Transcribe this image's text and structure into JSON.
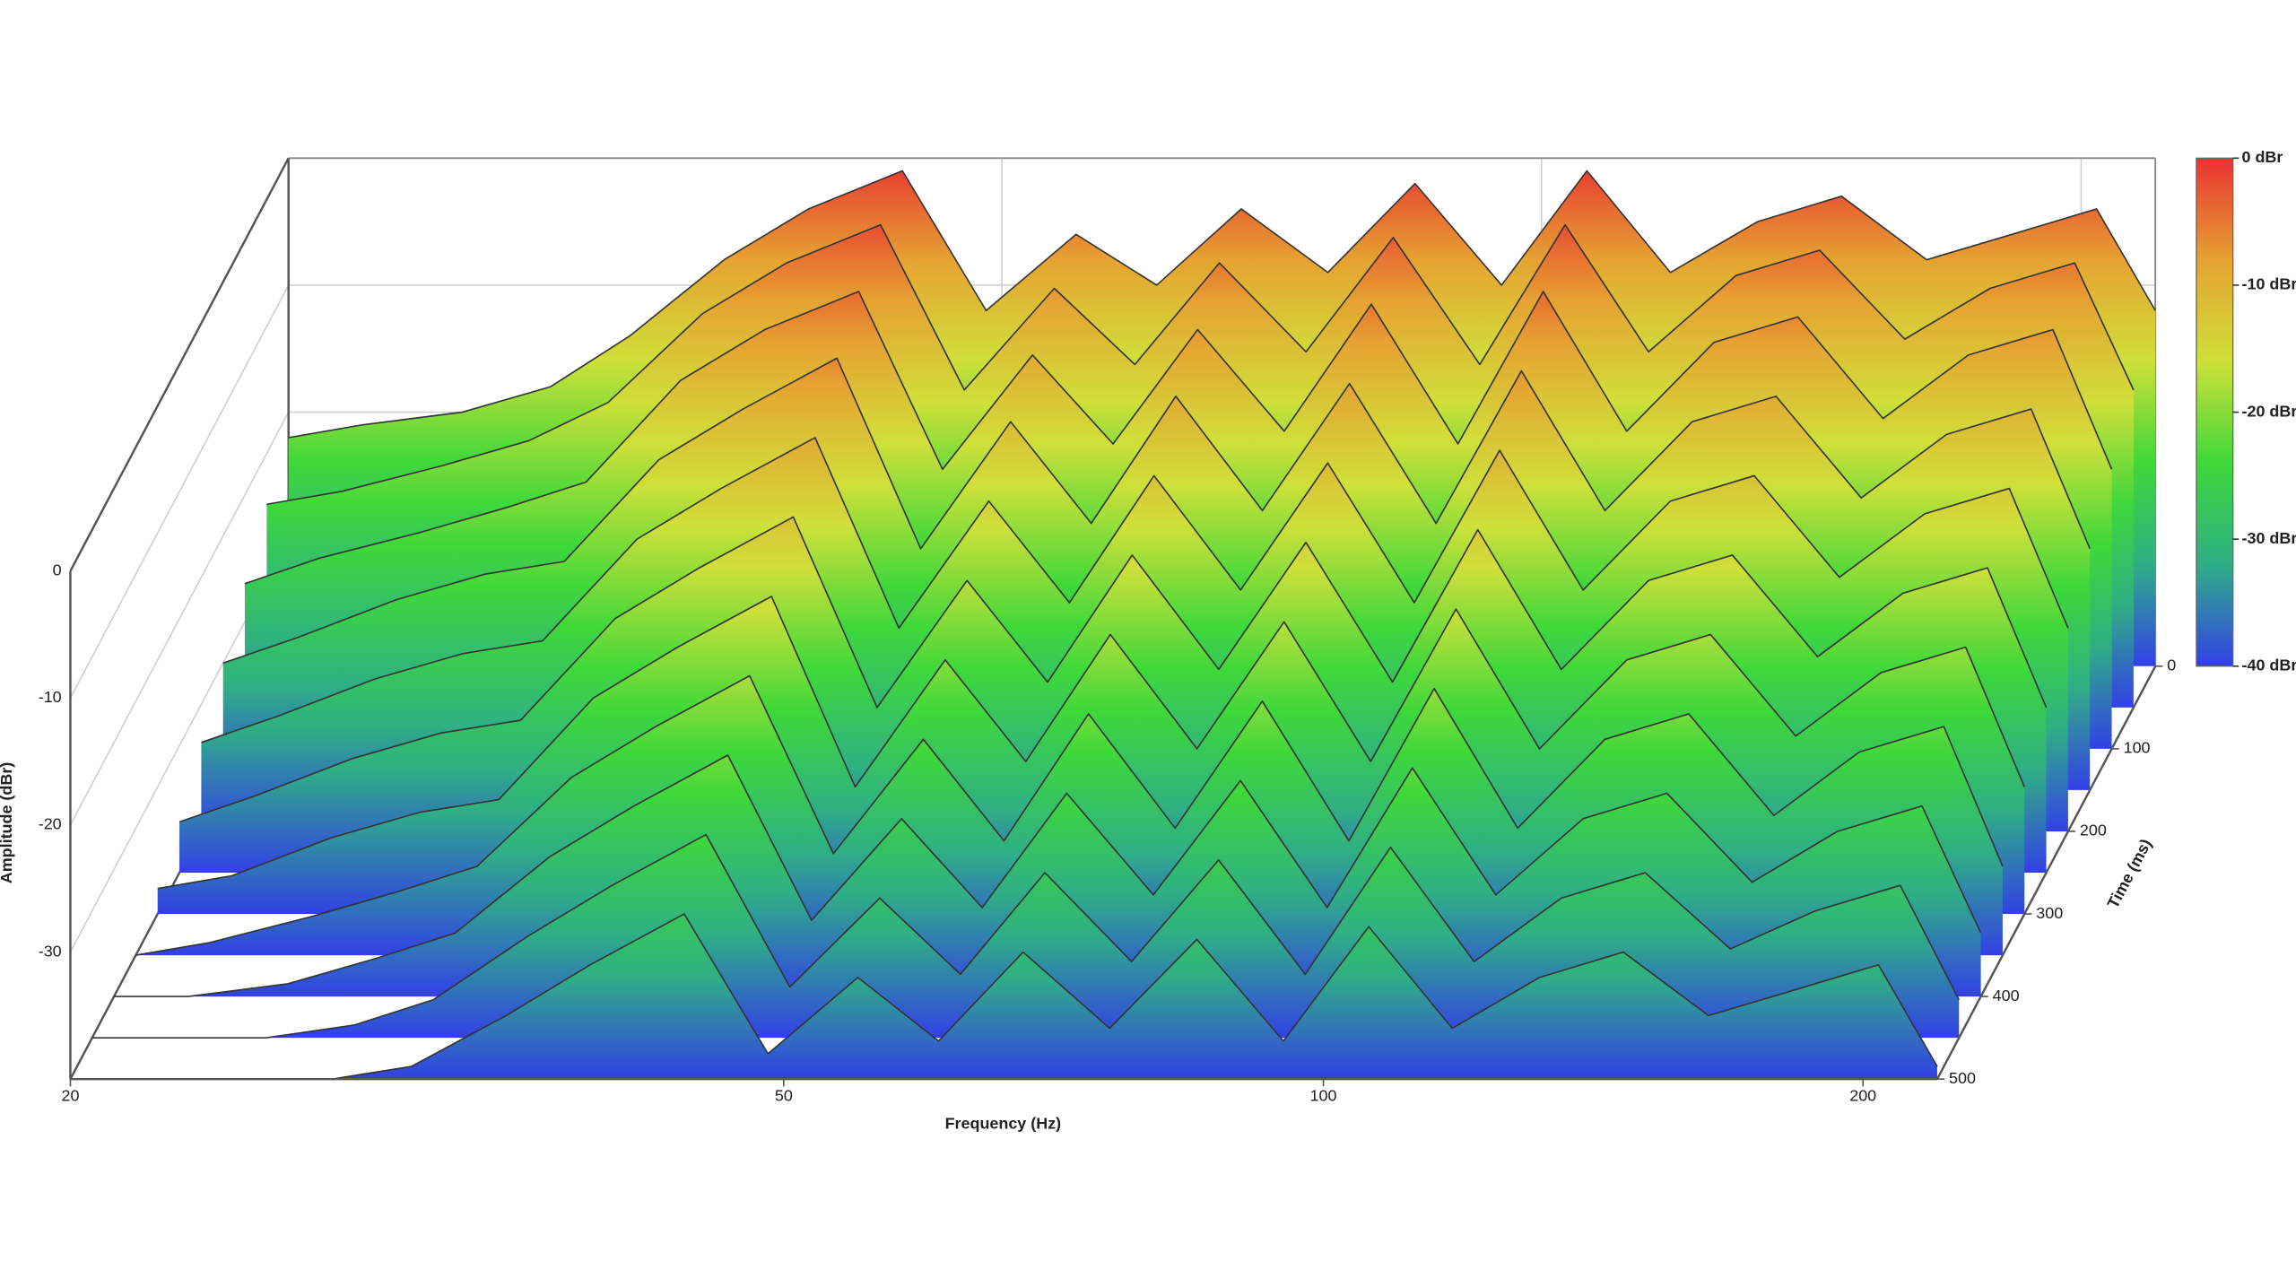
{
  "chart_data": {
    "type": "waterfall",
    "xlabel": "Frequency (Hz)",
    "ylabel": "Amplitude (dBr)",
    "zlabel": "Time (ms)",
    "xlim": [
      20,
      220
    ],
    "xticks": [
      20,
      50,
      100,
      200
    ],
    "ylim": [
      -40,
      0
    ],
    "yticks": [
      0,
      -10,
      -20,
      -30
    ],
    "zlim": [
      0,
      500
    ],
    "zticks": [
      0,
      100,
      200,
      300,
      400,
      500
    ],
    "log_x": true,
    "grid": true,
    "colorscale": [
      "#e83232",
      "#e6a232",
      "#cfe03a",
      "#3ed83a",
      "#2fae86",
      "#3340e6"
    ],
    "colorbar_ticks": [
      {
        "value": 0,
        "label": "0 dBr"
      },
      {
        "value": -10,
        "label": "-10 dBr"
      },
      {
        "value": -20,
        "label": "-20 dBr"
      },
      {
        "value": -30,
        "label": "-30 dBr"
      },
      {
        "value": -40,
        "label": "-40 dBr"
      }
    ],
    "x": [
      20,
      22,
      25,
      28,
      31,
      35,
      39,
      44,
      49,
      55,
      61,
      68,
      76,
      85,
      95,
      106,
      118,
      132,
      147,
      164,
      183,
      204,
      220
    ],
    "z": [
      0,
      50,
      100,
      150,
      200,
      250,
      300,
      350,
      400,
      450,
      500
    ],
    "values": [
      [
        -22,
        -21,
        -20,
        -18,
        -14,
        -8,
        -4,
        -1,
        -12,
        -6,
        -10,
        -4,
        -9,
        -2,
        -10,
        -1,
        -9,
        -5,
        -3,
        -8,
        -6,
        -4,
        -12
      ],
      [
        -24,
        -23,
        -21,
        -19,
        -16,
        -9,
        -5,
        -2,
        -15,
        -7,
        -13,
        -5,
        -12,
        -3,
        -13,
        -2,
        -12,
        -6,
        -4,
        -11,
        -7,
        -5,
        -15
      ],
      [
        -27,
        -25,
        -23,
        -21,
        -19,
        -11,
        -7,
        -4,
        -18,
        -9,
        -16,
        -7,
        -15,
        -5,
        -16,
        -4,
        -15,
        -8,
        -6,
        -14,
        -9,
        -7,
        -18
      ],
      [
        -30,
        -28,
        -25,
        -23,
        -22,
        -14,
        -10,
        -6,
        -21,
        -11,
        -19,
        -9,
        -18,
        -8,
        -19,
        -7,
        -18,
        -11,
        -9,
        -17,
        -12,
        -10,
        -21
      ],
      [
        -33,
        -31,
        -28,
        -26,
        -25,
        -17,
        -13,
        -9,
        -24,
        -14,
        -22,
        -12,
        -21,
        -11,
        -22,
        -10,
        -21,
        -14,
        -12,
        -20,
        -15,
        -13,
        -24
      ],
      [
        -36,
        -34,
        -31,
        -29,
        -28,
        -20,
        -16,
        -12,
        -27,
        -17,
        -25,
        -15,
        -24,
        -14,
        -25,
        -13,
        -24,
        -17,
        -15,
        -23,
        -18,
        -16,
        -27
      ],
      [
        -38,
        -37,
        -34,
        -32,
        -31,
        -23,
        -19,
        -15,
        -30,
        -20,
        -28,
        -18,
        -27,
        -17,
        -28,
        -16,
        -27,
        -20,
        -18,
        -26,
        -21,
        -19,
        -30
      ],
      [
        -40,
        -39,
        -37,
        -35,
        -33,
        -26,
        -22,
        -18,
        -32,
        -23,
        -31,
        -21,
        -30,
        -20,
        -31,
        -19,
        -30,
        -23,
        -21,
        -29,
        -24,
        -22,
        -33
      ],
      [
        -40,
        -40,
        -39,
        -37,
        -35,
        -29,
        -25,
        -21,
        -34,
        -26,
        -33,
        -24,
        -32,
        -23,
        -33,
        -22,
        -32,
        -26,
        -24,
        -31,
        -27,
        -25,
        -35
      ],
      [
        -40,
        -40,
        -40,
        -39,
        -37,
        -32,
        -28,
        -24,
        -36,
        -29,
        -35,
        -27,
        -34,
        -26,
        -35,
        -25,
        -34,
        -29,
        -27,
        -33,
        -30,
        -28,
        -37
      ],
      [
        -40,
        -40,
        -40,
        -40,
        -39,
        -35,
        -31,
        -27,
        -38,
        -32,
        -37,
        -30,
        -36,
        -29,
        -37,
        -28,
        -36,
        -32,
        -30,
        -35,
        -33,
        -31,
        -39
      ]
    ]
  }
}
